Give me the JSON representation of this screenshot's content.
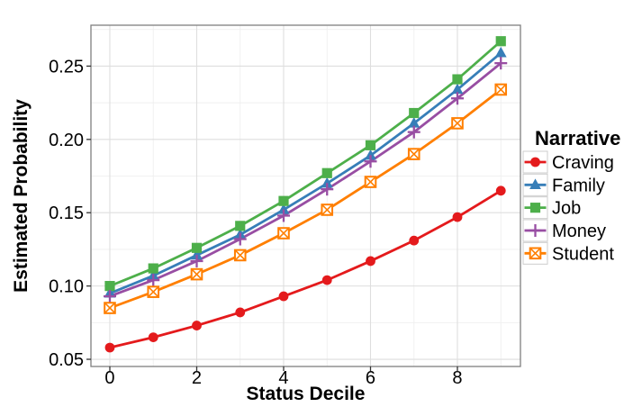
{
  "chart_data": {
    "type": "line",
    "xlabel": "Status Decile",
    "ylabel": "Estimated Probability",
    "legend_title": "Narrative",
    "legend_position": "right",
    "grid": true,
    "x": [
      0,
      1,
      2,
      3,
      4,
      5,
      6,
      7,
      8,
      9
    ],
    "series": [
      {
        "name": "Craving",
        "color": "#E41A1C",
        "marker": "circle",
        "values": [
          0.058,
          0.065,
          0.073,
          0.082,
          0.093,
          0.104,
          0.117,
          0.131,
          0.147,
          0.165
        ]
      },
      {
        "name": "Family",
        "color": "#377EB8",
        "marker": "triangle-up",
        "values": [
          0.095,
          0.107,
          0.121,
          0.135,
          0.152,
          0.17,
          0.189,
          0.211,
          0.234,
          0.259
        ]
      },
      {
        "name": "Job",
        "color": "#4DAF4A",
        "marker": "square",
        "values": [
          0.1,
          0.112,
          0.126,
          0.141,
          0.158,
          0.177,
          0.196,
          0.218,
          0.241,
          0.267
        ]
      },
      {
        "name": "Money",
        "color": "#984EA3",
        "marker": "plus",
        "values": [
          0.093,
          0.104,
          0.117,
          0.132,
          0.148,
          0.166,
          0.185,
          0.205,
          0.228,
          0.252
        ]
      },
      {
        "name": "Student",
        "color": "#FF7F00",
        "marker": "square-cross",
        "values": [
          0.085,
          0.096,
          0.108,
          0.121,
          0.136,
          0.152,
          0.171,
          0.19,
          0.211,
          0.234
        ]
      }
    ],
    "x_ticks": {
      "major": [
        0,
        2,
        4,
        6,
        8
      ],
      "minor": [
        1,
        3,
        5,
        7,
        9
      ],
      "labels": [
        "0",
        "2",
        "4",
        "6",
        "8"
      ]
    },
    "y_ticks": {
      "major": [
        0.05,
        0.1,
        0.15,
        0.2,
        0.25
      ],
      "minor": [
        0.075,
        0.125,
        0.175,
        0.225,
        0.275
      ],
      "labels": [
        "0.05",
        "0.10",
        "0.15",
        "0.20",
        "0.25"
      ]
    },
    "xlim": [
      -0.435,
      9.451
    ],
    "ylim": [
      0.0451,
      0.2779
    ],
    "colors": {
      "background": "#ffffff",
      "panel_background": "#ffffff",
      "panel_border": "#7f7f7f",
      "grid_major": "#dedede",
      "grid_minor": "#efefef",
      "tick": "#333333",
      "text": "#000000",
      "legend_key_border": "#cdcdcd"
    }
  }
}
